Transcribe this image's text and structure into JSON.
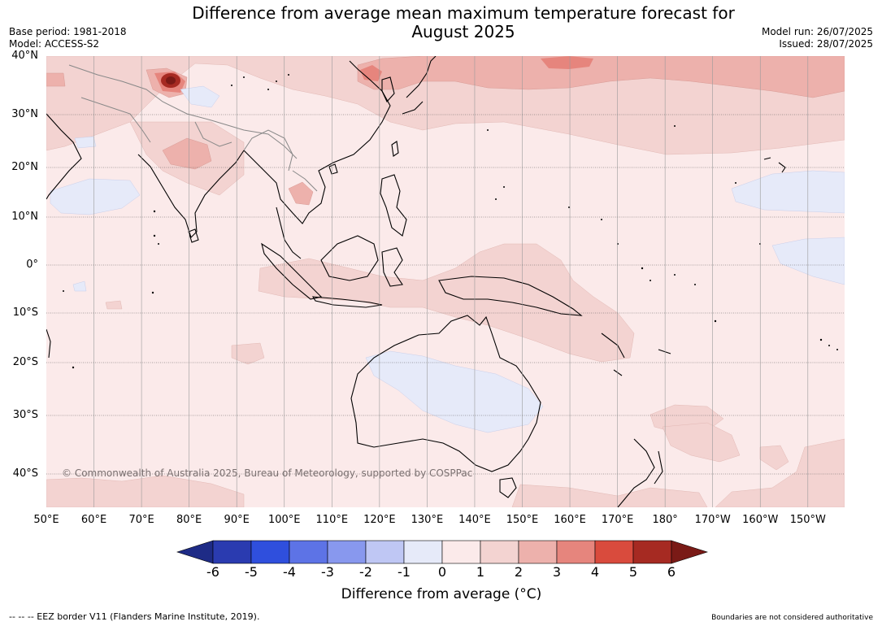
{
  "header": {
    "title_line1": "Difference from average mean maximum temperature forecast for",
    "title_line2": "August 2025",
    "base_period": "Base period: 1981-2018",
    "model": "Model: ACCESS-S2",
    "model_run": "Model run: 26/07/2025",
    "issued": "Issued: 28/07/2025"
  },
  "map": {
    "lat_labels": [
      "40°N",
      "30°N",
      "20°N",
      "10°N",
      "0°",
      "10°S",
      "20°S",
      "30°S",
      "40°S"
    ],
    "lon_labels": [
      "50°E",
      "60°E",
      "70°E",
      "80°E",
      "90°E",
      "100°E",
      "110°E",
      "120°E",
      "130°E",
      "140°E",
      "150°E",
      "160°E",
      "170°E",
      "180°",
      "170°W",
      "160°W",
      "150°W"
    ],
    "copyright": "© Commonwealth of Australia 2025, Bureau of Meteorology, supported by COSPPac",
    "colors": {
      "ocean_base": "#fbeaea",
      "band_1_2": "#f3d3d1",
      "band_2_3": "#edb1ac",
      "band_3_4": "#e6857d",
      "band_m1_0": "#e6eaf9",
      "land_outline": "#000000",
      "admin_borders": "#888888",
      "graticule": "#9a9a9a"
    }
  },
  "colorbar": {
    "ticks": [
      "-6",
      "-5",
      "-4",
      "-3",
      "-2",
      "-1",
      "0",
      "1",
      "2",
      "3",
      "4",
      "5",
      "6"
    ],
    "colors": [
      "#1e2b86",
      "#2a3bb0",
      "#2f4fdd",
      "#5d73e6",
      "#8898ee",
      "#bfc7f4",
      "#e6eaf9",
      "#fbeaea",
      "#f3d3d1",
      "#edb1ac",
      "#e6857d",
      "#d94b3d",
      "#a62a22",
      "#7a1a16"
    ],
    "label": "Difference from average (°C)"
  },
  "footer": {
    "eez_note": "--  --  -- EEZ border V11 (Flanders Marine Institute, 2019).",
    "boundaries_note": "Boundaries are not considered authoritative"
  }
}
